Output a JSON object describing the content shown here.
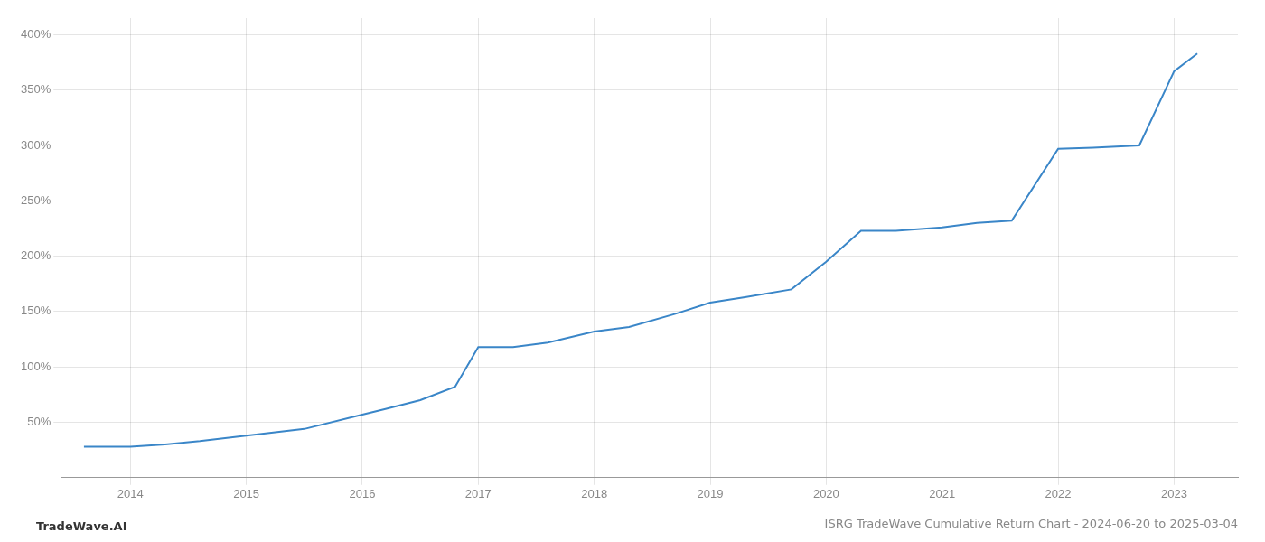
{
  "chart_data": {
    "type": "line",
    "title": "ISRG TradeWave Cumulative Return Chart - 2024-06-20 to 2025-03-04",
    "annotations": [
      "TradeWave.AI"
    ],
    "x": [
      2013.6,
      2014.0,
      2014.3,
      2014.6,
      2015.0,
      2015.5,
      2016.0,
      2016.2,
      2016.5,
      2016.8,
      2017.0,
      2017.3,
      2017.6,
      2018.0,
      2018.3,
      2018.7,
      2019.0,
      2019.3,
      2019.7,
      2020.0,
      2020.3,
      2020.6,
      2021.0,
      2021.3,
      2021.6,
      2022.0,
      2022.3,
      2022.7,
      2023.0,
      2023.2
    ],
    "values": [
      28,
      28,
      30,
      33,
      38,
      44,
      57,
      62,
      70,
      82,
      118,
      118,
      122,
      132,
      136,
      148,
      158,
      163,
      170,
      195,
      223,
      223,
      226,
      230,
      232,
      297,
      298,
      300,
      367,
      383
    ],
    "color": "#3a86c8",
    "xlim": [
      2013.4,
      2023.55
    ],
    "xticks": [
      2014,
      2015,
      2016,
      2017,
      2018,
      2019,
      2020,
      2021,
      2022,
      2023
    ],
    "ylim": [
      0,
      415
    ],
    "yticks": [
      {
        "value": 50,
        "label": "50%"
      },
      {
        "value": 100,
        "label": "100%"
      },
      {
        "value": 150,
        "label": "150%"
      },
      {
        "value": 200,
        "label": "200%"
      },
      {
        "value": 250,
        "label": "250%"
      },
      {
        "value": 300,
        "label": "300%"
      },
      {
        "value": 350,
        "label": "350%"
      },
      {
        "value": 400,
        "label": "400%"
      }
    ],
    "grid": true
  }
}
